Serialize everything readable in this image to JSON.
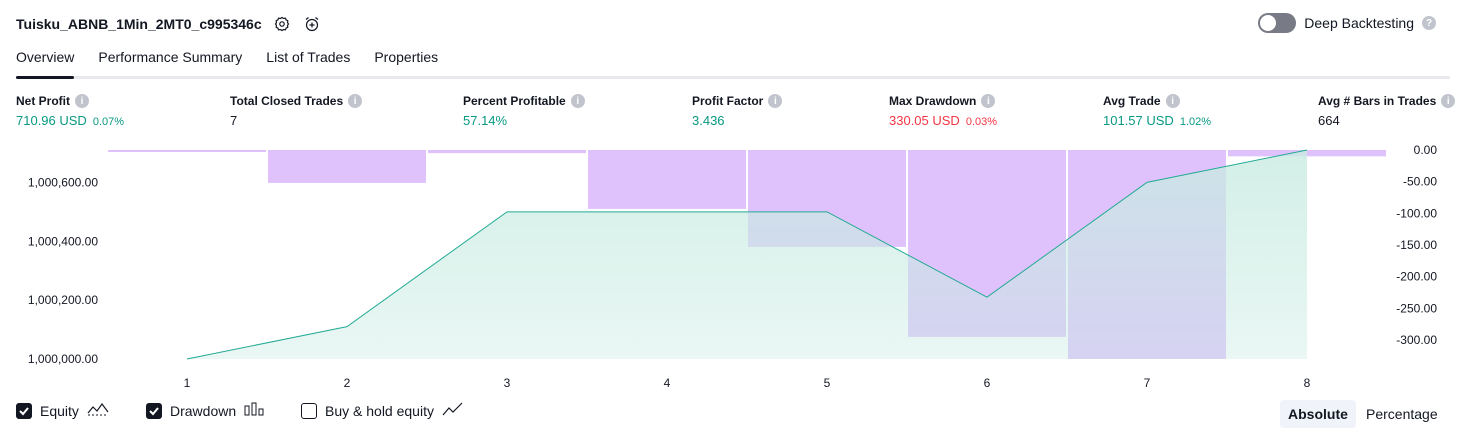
{
  "header": {
    "strategy_name": "Tuisku_ABNB_1Min_2MT0_c995346c",
    "settings_icon": "gear-icon",
    "alert_icon": "alarm-plus-icon",
    "deep_backtesting_label": "Deep Backtesting",
    "deep_backtesting_on": false
  },
  "tabs": [
    "Overview",
    "Performance Summary",
    "List of Trades",
    "Properties"
  ],
  "active_tab": "Overview",
  "metrics": [
    {
      "label": "Net Profit",
      "value": "710.96 USD",
      "pct": "0.07%",
      "color": "green"
    },
    {
      "label": "Total Closed Trades",
      "value": "7",
      "pct": "",
      "color": "dark"
    },
    {
      "label": "Percent Profitable",
      "value": "57.14%",
      "pct": "",
      "color": "green"
    },
    {
      "label": "Profit Factor",
      "value": "3.436",
      "pct": "",
      "color": "green"
    },
    {
      "label": "Max Drawdown",
      "value": "330.05 USD",
      "pct": "0.03%",
      "color": "red"
    },
    {
      "label": "Avg Trade",
      "value": "101.57 USD",
      "pct": "1.02%",
      "color": "green"
    },
    {
      "label": "Avg # Bars in Trades",
      "value": "664",
      "pct": "",
      "color": "dark"
    }
  ],
  "chart_data": {
    "type": "area",
    "x": [
      1,
      2,
      3,
      4,
      5,
      6,
      7,
      8
    ],
    "series": [
      {
        "values": [
          1000000,
          1000110,
          1000500,
          1000500,
          1000500,
          1000210,
          1000600,
          1000710
        ]
      },
      {
        "values": [
          0,
          -52,
          -5,
          -93,
          -153,
          -295,
          -330,
          -10
        ]
      }
    ],
    "left_axis_ticks": [
      "1,000,000.00",
      "1,000,200.00",
      "1,000,400.00",
      "1,000,600.00"
    ],
    "right_axis_ticks": [
      "0.00",
      "-50.00",
      "-100.00",
      "-150.00",
      "-200.00",
      "-250.00",
      "-300.00"
    ],
    "left_ylim": [
      1000000,
      1000710
    ],
    "right_ylim": [
      -330,
      0
    ],
    "colors": {
      "equity_line": "#22ab94",
      "equity_fill": "#c8ebe2",
      "drawdown_fill": "#d7b3fb"
    }
  },
  "controls": {
    "equity": {
      "label": "Equity",
      "checked": true,
      "icon": "equity-line-icon"
    },
    "drawdown": {
      "label": "Drawdown",
      "checked": true,
      "icon": "drawdown-bars-icon"
    },
    "buyhold": {
      "label": "Buy & hold equity",
      "checked": false,
      "icon": "buyhold-line-icon"
    },
    "absolute_label": "Absolute",
    "percentage_label": "Percentage"
  }
}
